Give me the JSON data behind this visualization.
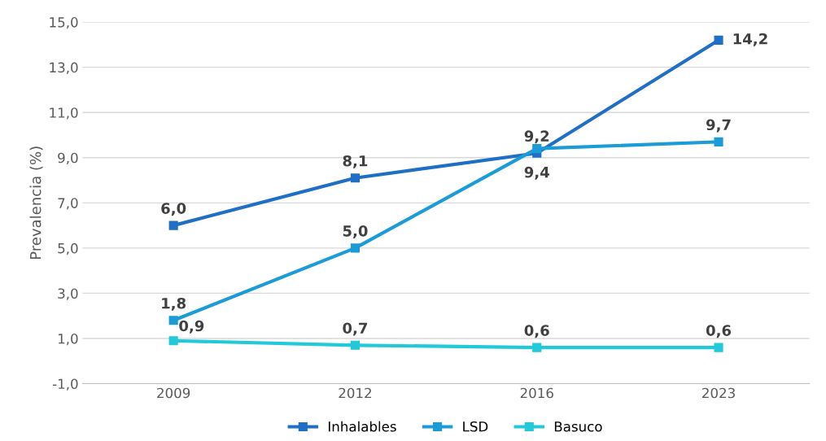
{
  "chart_data": {
    "type": "line",
    "ylabel": "Prevalencia (%)",
    "categories": [
      "2009",
      "2012",
      "2016",
      "2023"
    ],
    "series": [
      {
        "name": "Inhalables",
        "color": "#1f6fc6",
        "values": [
          6.0,
          8.1,
          9.2,
          14.2
        ],
        "value_labels": [
          "6,0",
          "8,1",
          "9,2",
          "14,2"
        ]
      },
      {
        "name": "LSD",
        "color": "#1b9bd7",
        "values": [
          1.8,
          5.0,
          9.4,
          9.7
        ],
        "value_labels": [
          "1,8",
          "5,0",
          "9,4",
          "9,7"
        ]
      },
      {
        "name": "Basuco",
        "color": "#22c9d9",
        "values": [
          0.9,
          0.7,
          0.6,
          0.6
        ],
        "value_labels": [
          "0,9",
          "0,7",
          "0,6",
          "0,6"
        ]
      }
    ],
    "ylim": [
      -1,
      15
    ],
    "yticks": [
      {
        "value": -1,
        "label": "-1,0"
      },
      {
        "value": 1,
        "label": "1,0"
      },
      {
        "value": 3,
        "label": "3,0"
      },
      {
        "value": 5,
        "label": "5,0"
      },
      {
        "value": 7,
        "label": "7,0"
      },
      {
        "value": 9,
        "label": "9,0"
      },
      {
        "value": 11,
        "label": "11,0"
      },
      {
        "value": 13,
        "label": "13,0"
      },
      {
        "value": 15,
        "label": "15,0"
      }
    ],
    "grid": "y",
    "legend": "bottom",
    "marker": "square",
    "line_style": "solid"
  }
}
